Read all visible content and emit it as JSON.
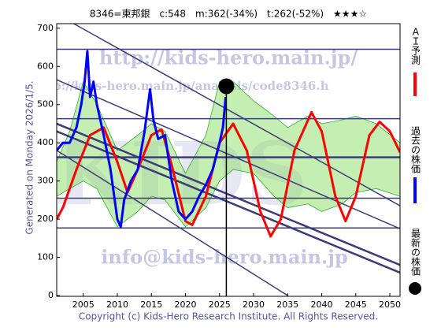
{
  "chart_data": {
    "type": "line",
    "title": "8346=東邦銀　c:548　m:362(-34%)　t:262(-52%)　★★★☆",
    "y_label": "Generated on Monday 2026/1/5.",
    "footer": "Copyright (c) Kids-Hero Research Institute. All Rights Reserved.",
    "watermarks": [
      "http://kids-hero.main.jp/",
      "http://kids-hero.main.jp/analysis/code8346.h",
      "info@kids-hero.main.jp",
      "KIDS"
    ],
    "xlim": [
      2001.1,
      2051.5
    ],
    "ylim": [
      -2,
      712
    ],
    "xticks": [
      2005,
      2010,
      2015,
      2020,
      2025,
      2030,
      2035,
      2040,
      2045,
      2050
    ],
    "yticks": [
      0,
      100,
      200,
      300,
      400,
      500,
      600,
      700
    ],
    "band": {
      "color": "#7ed957",
      "x": [
        2001.1,
        2003,
        2005,
        2007,
        2010,
        2013,
        2015,
        2017,
        2020,
        2023,
        2025,
        2027,
        2030,
        2033,
        2035,
        2038,
        2040,
        2043,
        2045,
        2048,
        2051.5
      ],
      "upper": [
        350,
        430,
        560,
        500,
        380,
        420,
        450,
        430,
        320,
        420,
        560,
        560,
        510,
        470,
        440,
        470,
        450,
        460,
        470,
        450,
        400
      ],
      "lower": [
        260,
        280,
        300,
        280,
        180,
        220,
        260,
        250,
        180,
        230,
        300,
        330,
        320,
        260,
        230,
        240,
        220,
        240,
        270,
        280,
        260
      ]
    },
    "hlines": {
      "color": "#3c3c78",
      "values": [
        645,
        463,
        362,
        255,
        177
      ]
    },
    "trendlines": [
      {
        "x": [
          2003.6,
          2051.5
        ],
        "y": [
          712,
          235
        ]
      },
      {
        "x": [
          2001.1,
          2051.5
        ],
        "y": [
          565,
          175
        ]
      },
      {
        "x": [
          2001.1,
          2051.5
        ],
        "y": [
          450,
          80
        ]
      },
      {
        "x": [
          2001.1,
          2051.5
        ],
        "y": [
          430,
          60
        ]
      },
      {
        "x": [
          2001.1,
          2035.0
        ],
        "y": [
          380,
          0
        ]
      }
    ],
    "series": [
      {
        "name": "ＡＩ予測",
        "color": "#ff0000",
        "x": [
          2001.1,
          2002,
          2004,
          2006,
          2008,
          2010,
          2011.5,
          2013,
          2015,
          2016.5,
          2018,
          2020,
          2021,
          2023,
          2025,
          2027,
          2029,
          2031,
          2032.5,
          2034,
          2036,
          2038.5,
          2040,
          2042,
          2043.5,
          2045,
          2047,
          2048.5,
          2050,
          2051.5
        ],
        "values": [
          200,
          230,
          330,
          420,
          440,
          350,
          270,
          330,
          420,
          435,
          340,
          195,
          185,
          260,
          400,
          450,
          380,
          220,
          155,
          200,
          380,
          480,
          430,
          260,
          195,
          260,
          420,
          455,
          430,
          375
        ]
      },
      {
        "name": "過去の株価",
        "color": "#0000ff",
        "x": [
          2001.1,
          2002,
          2003,
          2004,
          2004.7,
          2005.2,
          2005.6,
          2006,
          2006.5,
          2007,
          2008,
          2009,
          2010,
          2010.5,
          2011,
          2012,
          2013,
          2014,
          2014.8,
          2015.3,
          2016,
          2017,
          2018,
          2019,
          2020,
          2021,
          2022,
          2023,
          2024,
          2025,
          2025.5,
          2025.9
        ],
        "values": [
          380,
          400,
          400,
          440,
          500,
          560,
          640,
          520,
          560,
          500,
          420,
          330,
          200,
          180,
          250,
          300,
          330,
          430,
          540,
          460,
          410,
          420,
          300,
          220,
          200,
          220,
          260,
          290,
          330,
          400,
          440,
          520
        ]
      }
    ],
    "latest": {
      "name": "最新の株価",
      "color": "#000000",
      "x": 2026.0,
      "value": 548
    }
  }
}
